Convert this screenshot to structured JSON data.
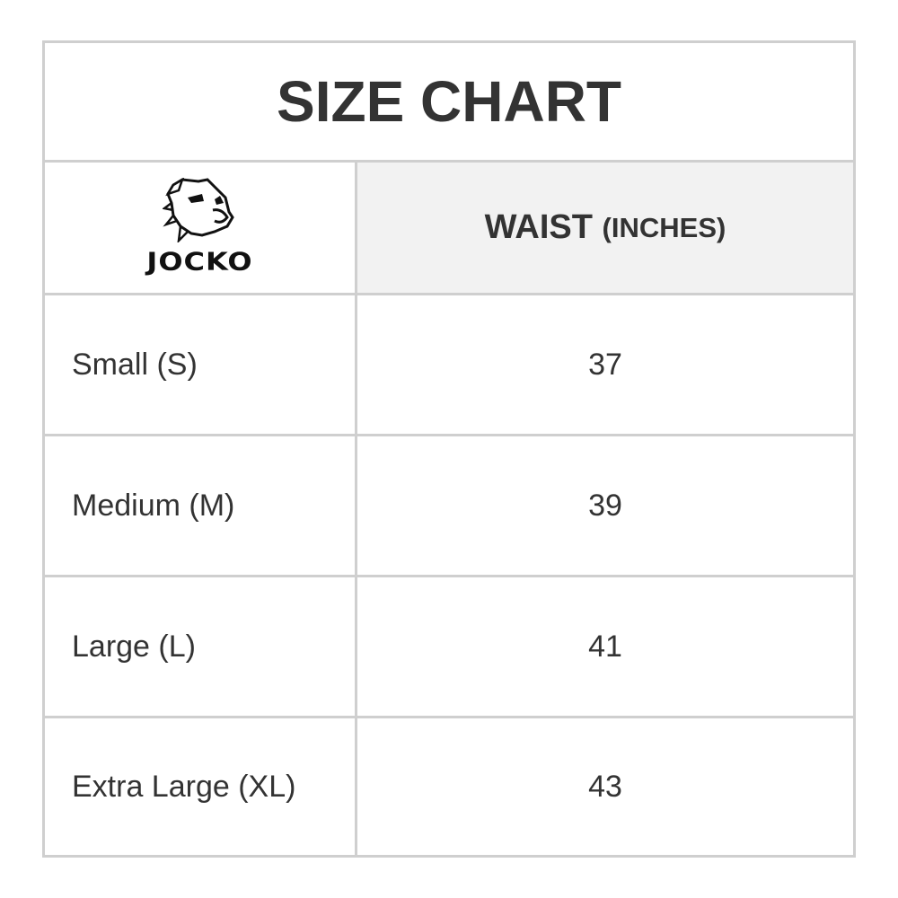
{
  "title": "SIZE CHART",
  "logo": {
    "brand": "JOCKO",
    "icon": "bulldog-head-icon"
  },
  "header": {
    "measure": "WAIST",
    "unit": "(INCHES)"
  },
  "rows": [
    {
      "size": "Small (S)",
      "waist": "37"
    },
    {
      "size": "Medium (M)",
      "waist": "39"
    },
    {
      "size": "Large (L)",
      "waist": "41"
    },
    {
      "size": "Extra Large (XL)",
      "waist": "43"
    }
  ],
  "colors": {
    "border": "#cfcfcf",
    "header_bg": "#f2f2f2",
    "text": "#333333"
  }
}
